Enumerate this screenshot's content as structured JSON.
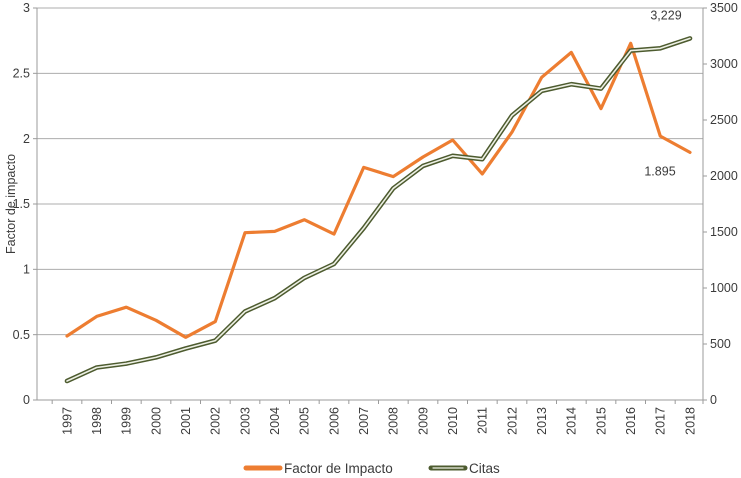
{
  "chart_data": {
    "type": "line",
    "title": "",
    "grid": "horizontal",
    "legend_position": "bottom",
    "categories": [
      "1997",
      "1998",
      "1999",
      "2000",
      "2001",
      "2002",
      "2003",
      "2004",
      "2005",
      "2006",
      "2007",
      "2008",
      "2009",
      "2010",
      "2011",
      "2012",
      "2013",
      "2014",
      "2015",
      "2016",
      "2017",
      "2018"
    ],
    "series": [
      {
        "name": "Factor de Impacto",
        "axis": "left",
        "color": "#ED7D31",
        "values": [
          0.49,
          0.64,
          0.71,
          0.61,
          0.48,
          0.6,
          1.28,
          1.29,
          1.38,
          1.27,
          1.78,
          1.71,
          1.86,
          1.99,
          1.73,
          2.05,
          2.47,
          2.66,
          2.23,
          2.73,
          2.02,
          1.895
        ]
      },
      {
        "name": "Citas",
        "axis": "right",
        "color": "#4D5B2F",
        "core_color": "#EDF0E4",
        "values": [
          170,
          290,
          325,
          380,
          460,
          530,
          790,
          910,
          1090,
          1215,
          1535,
          1890,
          2090,
          2180,
          2150,
          2540,
          2760,
          2820,
          2780,
          3120,
          3140,
          3229
        ]
      }
    ],
    "left_axis": {
      "title": "Factor de impacto",
      "min": 0,
      "max": 3,
      "step": 0.5,
      "tick_labels": [
        "0",
        "0.5",
        "1",
        "1.5",
        "2",
        "2.5",
        "3"
      ]
    },
    "right_axis": {
      "title": "",
      "min": 0,
      "max": 3500,
      "step": 500,
      "tick_labels": [
        "0",
        "500",
        "1000",
        "1500",
        "2000",
        "2500",
        "3000",
        "3500"
      ]
    },
    "annotations": [
      {
        "series": "Citas",
        "category": "2018",
        "text": "3,229"
      },
      {
        "series": "Factor de Impacto",
        "category": "2018",
        "text": "1.895"
      }
    ],
    "legend": [
      {
        "label": "Factor de Impacto",
        "color": "#ED7D31"
      },
      {
        "label": "Citas",
        "color": "#4D5B2F"
      }
    ],
    "colors": {
      "gridline": "#ADADAD",
      "axis_line": "#9B9B9B",
      "text": "#3B3B3B"
    }
  }
}
